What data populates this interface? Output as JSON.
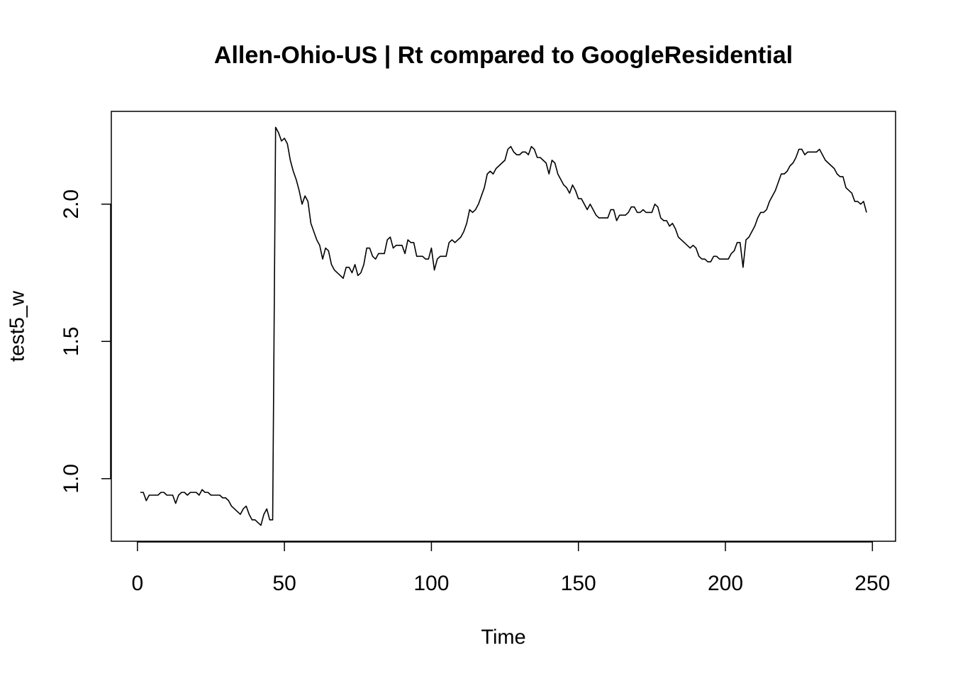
{
  "chart_data": {
    "type": "line",
    "title": "Allen-Ohio-US | Rt compared to GoogleResidential",
    "xlabel": "Time",
    "ylabel": "test5_w",
    "color": "#000000",
    "xlim": [
      -8.88,
      257.88
    ],
    "ylim": [
      0.772,
      2.338
    ],
    "xticks": [
      0,
      50,
      100,
      150,
      200,
      250
    ],
    "yticks": [
      {
        "value": 1,
        "label": "1.0"
      },
      1.5,
      {
        "value": 2,
        "label": "2.0"
      }
    ],
    "x": [
      1,
      2,
      3,
      4,
      5,
      6,
      7,
      8,
      9,
      10,
      11,
      12,
      13,
      14,
      15,
      16,
      17,
      18,
      19,
      20,
      21,
      22,
      23,
      24,
      25,
      26,
      27,
      28,
      29,
      30,
      31,
      32,
      33,
      34,
      35,
      36,
      37,
      38,
      39,
      40,
      41,
      42,
      43,
      44,
      45,
      46,
      47,
      48,
      49,
      50,
      51,
      52,
      53,
      54,
      55,
      56,
      57,
      58,
      59,
      60,
      61,
      62,
      63,
      64,
      65,
      66,
      67,
      68,
      69,
      70,
      71,
      72,
      73,
      74,
      75,
      76,
      77,
      78,
      79,
      80,
      81,
      82,
      83,
      84,
      85,
      86,
      87,
      88,
      89,
      90,
      91,
      92,
      93,
      94,
      95,
      96,
      97,
      98,
      99,
      100,
      101,
      102,
      103,
      104,
      105,
      106,
      107,
      108,
      109,
      110,
      111,
      112,
      113,
      114,
      115,
      116,
      117,
      118,
      119,
      120,
      121,
      122,
      123,
      124,
      125,
      126,
      127,
      128,
      129,
      130,
      131,
      132,
      133,
      134,
      135,
      136,
      137,
      138,
      139,
      140,
      141,
      142,
      143,
      144,
      145,
      146,
      147,
      148,
      149,
      150,
      151,
      152,
      153,
      154,
      155,
      156,
      157,
      158,
      159,
      160,
      161,
      162,
      163,
      164,
      165,
      166,
      167,
      168,
      169,
      170,
      171,
      172,
      173,
      174,
      175,
      176,
      177,
      178,
      179,
      180,
      181,
      182,
      183,
      184,
      185,
      186,
      187,
      188,
      189,
      190,
      191,
      192,
      193,
      194,
      195,
      196,
      197,
      198,
      199,
      200,
      201,
      202,
      203,
      204,
      205,
      206,
      207,
      208,
      209,
      210,
      211,
      212,
      213,
      214,
      215,
      216,
      217,
      218,
      219,
      220,
      221,
      222,
      223,
      224,
      225,
      226,
      227,
      228,
      229,
      230,
      231,
      232,
      233,
      234,
      235,
      236,
      237,
      238,
      239,
      240,
      241,
      242,
      243,
      244,
      245,
      246,
      247,
      248
    ],
    "values": [
      0.95,
      0.95,
      0.92,
      0.94,
      0.94,
      0.94,
      0.94,
      0.95,
      0.95,
      0.94,
      0.94,
      0.94,
      0.91,
      0.94,
      0.95,
      0.95,
      0.94,
      0.95,
      0.95,
      0.95,
      0.94,
      0.96,
      0.95,
      0.95,
      0.94,
      0.94,
      0.94,
      0.94,
      0.93,
      0.93,
      0.92,
      0.9,
      0.89,
      0.88,
      0.87,
      0.89,
      0.9,
      0.87,
      0.85,
      0.85,
      0.84,
      0.83,
      0.87,
      0.89,
      0.85,
      0.85,
      2.28,
      2.26,
      2.23,
      2.24,
      2.22,
      2.16,
      2.12,
      2.09,
      2.05,
      2.0,
      2.03,
      2.01,
      1.93,
      1.9,
      1.87,
      1.85,
      1.8,
      1.84,
      1.83,
      1.78,
      1.76,
      1.75,
      1.74,
      1.73,
      1.77,
      1.77,
      1.75,
      1.78,
      1.74,
      1.75,
      1.78,
      1.84,
      1.84,
      1.81,
      1.8,
      1.82,
      1.82,
      1.82,
      1.87,
      1.88,
      1.84,
      1.85,
      1.85,
      1.85,
      1.82,
      1.87,
      1.86,
      1.86,
      1.81,
      1.81,
      1.81,
      1.8,
      1.8,
      1.84,
      1.76,
      1.8,
      1.81,
      1.81,
      1.81,
      1.86,
      1.87,
      1.86,
      1.87,
      1.88,
      1.9,
      1.93,
      1.98,
      1.97,
      1.98,
      2.0,
      2.03,
      2.06,
      2.11,
      2.12,
      2.11,
      2.13,
      2.14,
      2.15,
      2.16,
      2.2,
      2.21,
      2.19,
      2.18,
      2.18,
      2.19,
      2.19,
      2.18,
      2.21,
      2.2,
      2.17,
      2.17,
      2.16,
      2.15,
      2.11,
      2.16,
      2.15,
      2.11,
      2.09,
      2.07,
      2.06,
      2.04,
      2.07,
      2.05,
      2.02,
      2.02,
      2.0,
      1.98,
      2.0,
      1.98,
      1.96,
      1.95,
      1.95,
      1.95,
      1.95,
      1.98,
      1.98,
      1.94,
      1.96,
      1.96,
      1.96,
      1.97,
      1.99,
      1.99,
      1.97,
      1.97,
      1.98,
      1.97,
      1.97,
      1.97,
      2.0,
      1.99,
      1.95,
      1.94,
      1.94,
      1.92,
      1.93,
      1.91,
      1.88,
      1.87,
      1.86,
      1.85,
      1.84,
      1.85,
      1.84,
      1.81,
      1.8,
      1.8,
      1.79,
      1.79,
      1.81,
      1.81,
      1.8,
      1.8,
      1.8,
      1.8,
      1.82,
      1.83,
      1.86,
      1.86,
      1.77,
      1.87,
      1.88,
      1.9,
      1.92,
      1.95,
      1.97,
      1.97,
      1.98,
      2.01,
      2.03,
      2.05,
      2.08,
      2.11,
      2.11,
      2.12,
      2.14,
      2.15,
      2.17,
      2.2,
      2.2,
      2.18,
      2.19,
      2.19,
      2.19,
      2.19,
      2.2,
      2.18,
      2.16,
      2.15,
      2.14,
      2.13,
      2.11,
      2.1,
      2.1,
      2.06,
      2.05,
      2.04,
      2.01,
      2.01,
      2.0,
      2.01,
      1.97
    ]
  }
}
